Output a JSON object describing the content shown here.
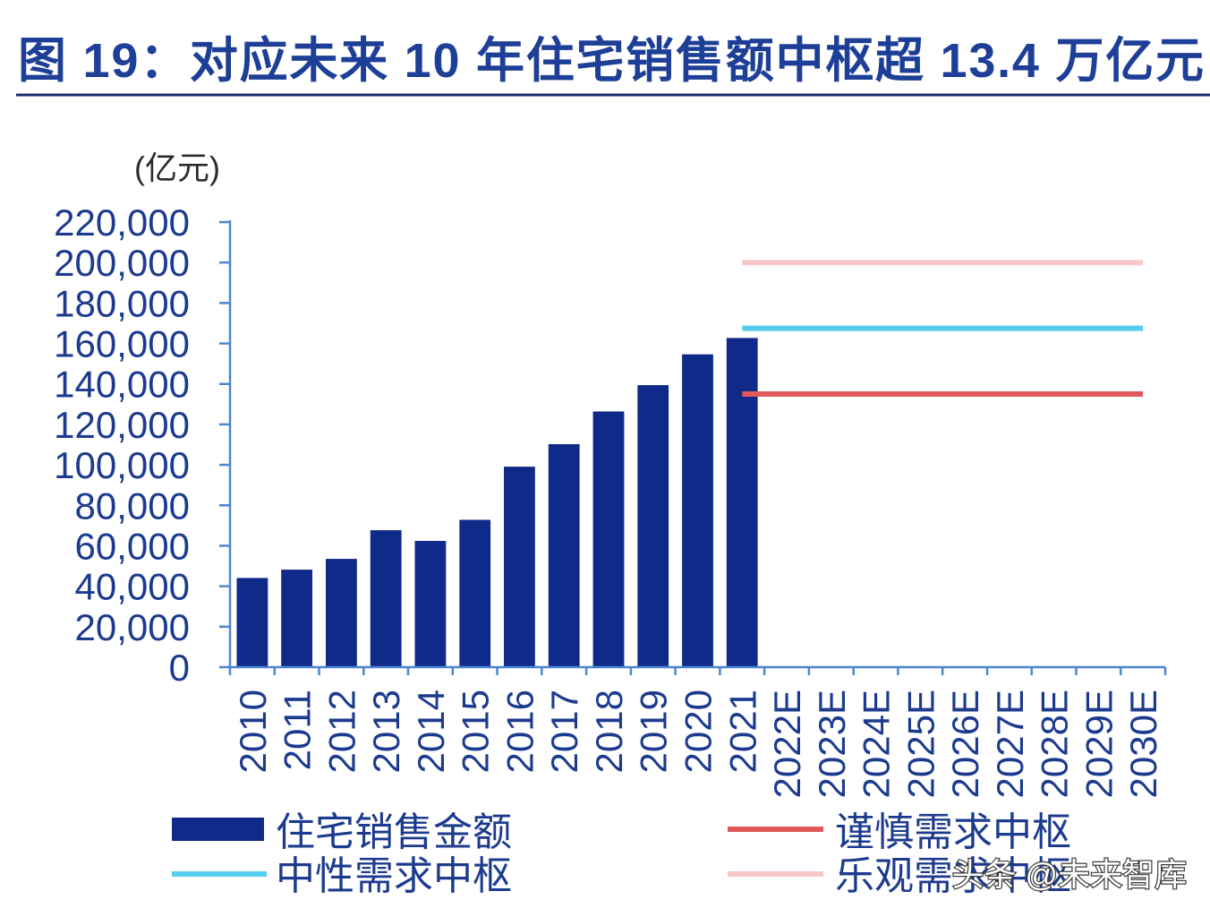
{
  "colors": {
    "title": "#1e3f97",
    "title_rule": "#1b2b6c",
    "axis": "#4c86d0",
    "text": "#1d3b8e",
    "unit": "#2b2b2b"
  },
  "watermark": "头条 @未来智库",
  "chart_data": {
    "type": "bar",
    "title": "图 19：对应未来 10 年住宅销售额中枢超 13.4 万亿元",
    "ylabel": "(亿元)",
    "categories": [
      "2010",
      "2011",
      "2012",
      "2013",
      "2014",
      "2015",
      "2016",
      "2017",
      "2018",
      "2019",
      "2020",
      "2021",
      "2022E",
      "2023E",
      "2024E",
      "2025E",
      "2026E",
      "2027E",
      "2028E",
      "2029E",
      "2030E"
    ],
    "ylim": [
      0,
      220000
    ],
    "y_tick_labels": [
      "0",
      "20,000",
      "40,000",
      "60,000",
      "80,000",
      "100,000",
      "120,000",
      "140,000",
      "160,000",
      "180,000",
      "200,000",
      "220,000"
    ],
    "grid": false,
    "legend": "bottom",
    "series": [
      {
        "name": "住宅销售金额",
        "type": "bar",
        "color": "#0f2a88",
        "values": [
          44100,
          48200,
          53500,
          67700,
          62400,
          72800,
          99100,
          110200,
          126400,
          139400,
          154600,
          162700,
          null,
          null,
          null,
          null,
          null,
          null,
          null,
          null,
          null
        ]
      },
      {
        "name": "谨慎需求中枢",
        "type": "line",
        "color": "#e05a5c",
        "values": [
          null,
          null,
          null,
          null,
          null,
          null,
          null,
          null,
          null,
          null,
          null,
          135000,
          135000,
          135000,
          135000,
          135000,
          135000,
          135000,
          135000,
          135000,
          135000
        ]
      },
      {
        "name": "中性需求中枢",
        "type": "line",
        "color": "#55cdee",
        "values": [
          null,
          null,
          null,
          null,
          null,
          null,
          null,
          null,
          null,
          null,
          null,
          167500,
          167500,
          167500,
          167500,
          167500,
          167500,
          167500,
          167500,
          167500,
          167500
        ]
      },
      {
        "name": "乐观需求中枢",
        "type": "line",
        "color": "#f7c7c9",
        "values": [
          null,
          null,
          null,
          null,
          null,
          null,
          null,
          null,
          null,
          null,
          null,
          200000,
          200000,
          200000,
          200000,
          200000,
          200000,
          200000,
          200000,
          200000,
          200000
        ]
      }
    ]
  }
}
